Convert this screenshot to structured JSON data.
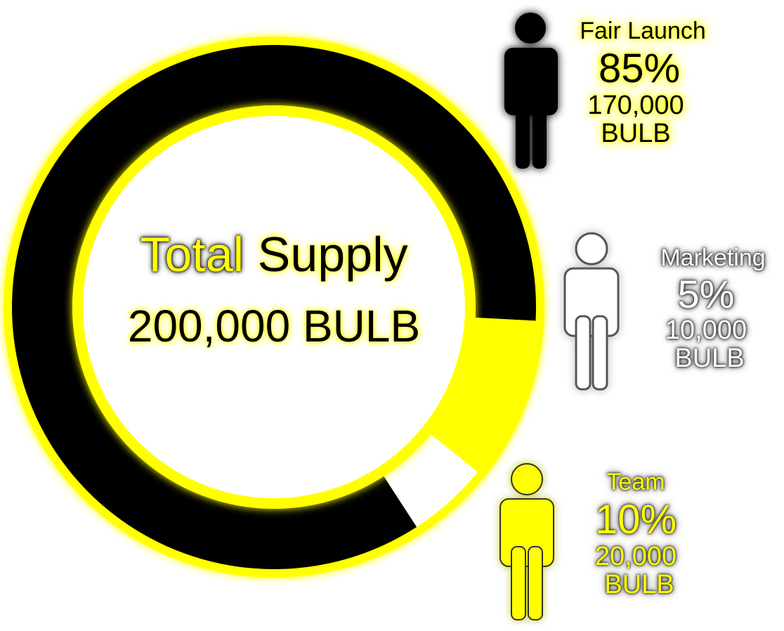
{
  "chart_data": {
    "type": "pie",
    "title_part1": "Total",
    "title_part2": "Supply",
    "total": "200,000 BULB",
    "slices": [
      {
        "name": "Fair Launch",
        "value": 85,
        "percent_label": "85%",
        "amount_label": "170,000",
        "unit": "BULB"
      },
      {
        "name": "Team",
        "value": 10,
        "percent_label": "10%",
        "amount_label": "20,000",
        "unit": "BULB"
      },
      {
        "name": "Marketing",
        "value": 5,
        "percent_label": "5%",
        "amount_label": "10,000",
        "unit": "BULB"
      }
    ],
    "donut": true,
    "legend": "right"
  },
  "colors": {
    "fair_launch": "#000000",
    "team": "#ffff00",
    "marketing": "#ffffff",
    "ring_outline": "#ffff00"
  },
  "icons": [
    "person-icon-black",
    "person-icon-white",
    "person-icon-yellow"
  ]
}
